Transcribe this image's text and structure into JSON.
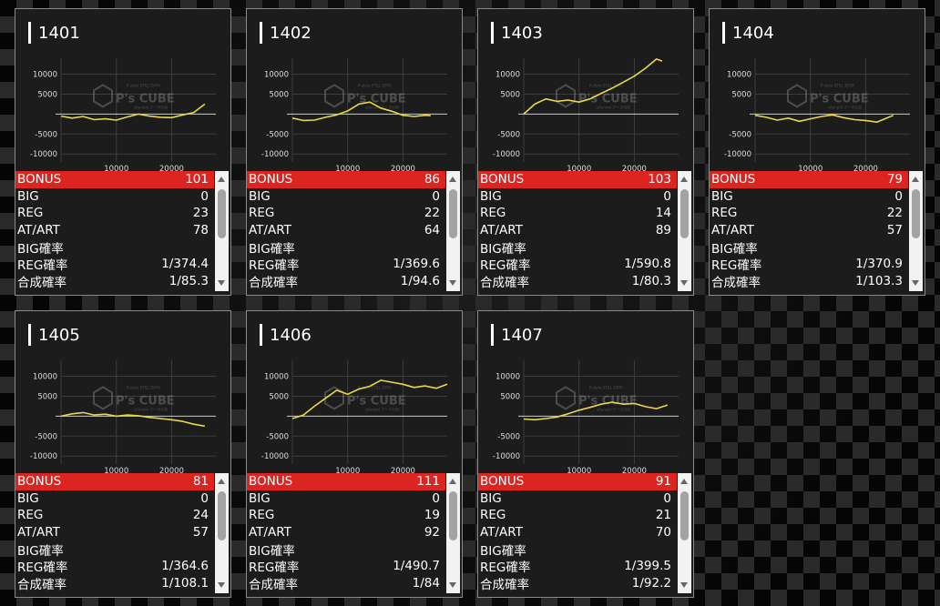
{
  "labels": {
    "bonus": "BONUS",
    "big": "BIG",
    "reg": "REG",
    "at": "AT/ART",
    "big_rate": "BIG確率",
    "reg_rate": "REG確率",
    "total_rate": "合成確率"
  },
  "watermark": {
    "main": "P's CUBE",
    "sub": "P-style STILL DATA",
    "sub2": "sitenext データ分析"
  },
  "chart_data": [
    {
      "type": "line",
      "title": "1401",
      "yticks": [
        "10000",
        "5000",
        "-5000",
        "-10000"
      ],
      "xticks": [
        "10000",
        "20000"
      ],
      "ylim": [
        -12000,
        14000
      ],
      "xlim": [
        0,
        28000
      ],
      "series": [
        {
          "x": [
            0,
            2000,
            4000,
            6000,
            8000,
            10000,
            12000,
            14000,
            16000,
            18000,
            20000,
            22000,
            24000,
            26000
          ],
          "y": [
            -500,
            -1000,
            -600,
            -1400,
            -1200,
            -1500,
            -700,
            0,
            -500,
            -800,
            -900,
            -200,
            400,
            2500
          ]
        }
      ]
    },
    {
      "type": "line",
      "title": "1402",
      "yticks": [
        "10000",
        "5000",
        "-5000",
        "-10000"
      ],
      "xticks": [
        "10000",
        "20000"
      ],
      "ylim": [
        -12000,
        14000
      ],
      "xlim": [
        0,
        28000
      ],
      "series": [
        {
          "x": [
            0,
            2000,
            4000,
            6000,
            8000,
            10000,
            12000,
            14000,
            16000,
            18000,
            20000,
            22000,
            24000,
            25000
          ],
          "y": [
            -1000,
            -1600,
            -1500,
            -800,
            -200,
            800,
            2500,
            3000,
            1500,
            700,
            -300,
            -600,
            -300,
            -400
          ]
        }
      ]
    },
    {
      "type": "line",
      "title": "1403",
      "yticks": [
        "10000",
        "5000",
        "-5000",
        "-10000"
      ],
      "xticks": [
        "10000",
        "20000"
      ],
      "ylim": [
        -12000,
        14000
      ],
      "xlim": [
        0,
        28000
      ],
      "series": [
        {
          "x": [
            0,
            2000,
            4000,
            6000,
            8000,
            10000,
            12000,
            14000,
            16000,
            18000,
            20000,
            22000,
            24000,
            25000
          ],
          "y": [
            0,
            2500,
            3800,
            3200,
            3500,
            3000,
            3800,
            5200,
            6500,
            8000,
            9500,
            11500,
            13800,
            13300
          ]
        }
      ]
    },
    {
      "type": "line",
      "title": "1404",
      "yticks": [
        "10000",
        "5000",
        "-5000",
        "-10000"
      ],
      "xticks": [
        "10000",
        "20000"
      ],
      "ylim": [
        -12000,
        14000
      ],
      "xlim": [
        0,
        28000
      ],
      "series": [
        {
          "x": [
            0,
            2000,
            4000,
            6000,
            8000,
            10000,
            12000,
            14000,
            16000,
            18000,
            20000,
            22000,
            24000,
            25000
          ],
          "y": [
            -300,
            -800,
            -1500,
            -1000,
            -1800,
            -1200,
            -600,
            -200,
            -900,
            -1400,
            -1600,
            -2000,
            -900,
            -300
          ]
        }
      ]
    },
    {
      "type": "line",
      "title": "1405",
      "yticks": [
        "10000",
        "5000",
        "-5000",
        "-10000"
      ],
      "xticks": [
        "10000",
        "20000"
      ],
      "ylim": [
        -12000,
        14000
      ],
      "xlim": [
        0,
        28000
      ],
      "series": [
        {
          "x": [
            0,
            2000,
            4000,
            6000,
            8000,
            10000,
            12000,
            14000,
            16000,
            18000,
            20000,
            22000,
            24000,
            26000
          ],
          "y": [
            0,
            600,
            900,
            300,
            500,
            0,
            300,
            100,
            -300,
            -600,
            -900,
            -1300,
            -2000,
            -2500
          ]
        }
      ]
    },
    {
      "type": "line",
      "title": "1406",
      "yticks": [
        "10000",
        "5000",
        "-5000",
        "-10000"
      ],
      "xticks": [
        "10000",
        "20000"
      ],
      "ylim": [
        -12000,
        14000
      ],
      "xlim": [
        0,
        28000
      ],
      "series": [
        {
          "x": [
            0,
            2000,
            4000,
            6000,
            8000,
            10000,
            12000,
            14000,
            16000,
            18000,
            20000,
            22000,
            24000,
            26000,
            28000
          ],
          "y": [
            -600,
            300,
            2500,
            4500,
            6500,
            5500,
            6800,
            7500,
            9000,
            8500,
            8000,
            7200,
            7600,
            7000,
            8000
          ]
        }
      ]
    },
    {
      "type": "line",
      "title": "1407",
      "yticks": [
        "10000",
        "5000",
        "-5000",
        "-10000"
      ],
      "xticks": [
        "10000",
        "20000"
      ],
      "ylim": [
        -12000,
        14000
      ],
      "xlim": [
        0,
        28000
      ],
      "series": [
        {
          "x": [
            0,
            2000,
            4000,
            6000,
            8000,
            10000,
            12000,
            14000,
            16000,
            18000,
            20000,
            22000,
            24000,
            26000
          ],
          "y": [
            -700,
            -900,
            -600,
            -200,
            600,
            1500,
            2200,
            3000,
            3500,
            3000,
            3200,
            2400,
            1900,
            2800
          ]
        }
      ]
    }
  ],
  "machines": [
    {
      "id": "1401",
      "bonus": "101",
      "big": "0",
      "reg": "23",
      "at": "78",
      "big_rate": "",
      "reg_rate": "1/374.4",
      "total_rate": "1/85.3"
    },
    {
      "id": "1402",
      "bonus": "86",
      "big": "0",
      "reg": "22",
      "at": "64",
      "big_rate": "",
      "reg_rate": "1/369.6",
      "total_rate": "1/94.6"
    },
    {
      "id": "1403",
      "bonus": "103",
      "big": "0",
      "reg": "14",
      "at": "89",
      "big_rate": "",
      "reg_rate": "1/590.8",
      "total_rate": "1/80.3"
    },
    {
      "id": "1404",
      "bonus": "79",
      "big": "0",
      "reg": "22",
      "at": "57",
      "big_rate": "",
      "reg_rate": "1/370.9",
      "total_rate": "1/103.3"
    },
    {
      "id": "1405",
      "bonus": "81",
      "big": "0",
      "reg": "24",
      "at": "57",
      "big_rate": "",
      "reg_rate": "1/364.6",
      "total_rate": "1/108.1"
    },
    {
      "id": "1406",
      "bonus": "111",
      "big": "0",
      "reg": "19",
      "at": "92",
      "big_rate": "",
      "reg_rate": "1/490.7",
      "total_rate": "1/84"
    },
    {
      "id": "1407",
      "bonus": "91",
      "big": "0",
      "reg": "21",
      "at": "70",
      "big_rate": "",
      "reg_rate": "1/399.5",
      "total_rate": "1/92.2"
    }
  ],
  "colors": {
    "accent_red": "#dc2420",
    "line_yellow": "#e8d84a",
    "panel_bg": "#1c1c1c"
  }
}
